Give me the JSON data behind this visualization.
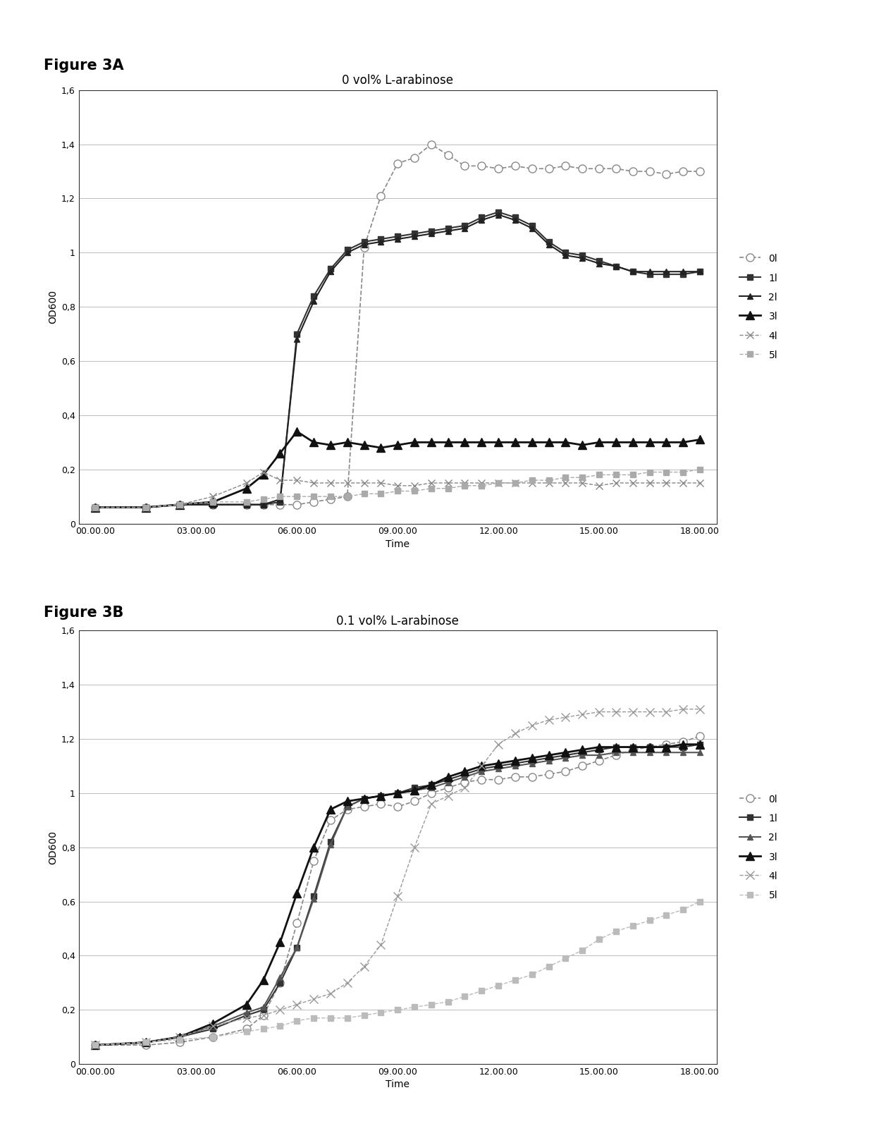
{
  "fig_label_A": "Figure 3A",
  "fig_label_B": "Figure 3B",
  "title_A": "0 vol% L-arabinose",
  "title_B": "0.1 vol% L-arabinose",
  "xlabel": "Time",
  "ylabel": "OD600",
  "ylim": [
    0,
    1.6
  ],
  "yticks": [
    0,
    0.2,
    0.4,
    0.6,
    0.8,
    1.0,
    1.2,
    1.4,
    1.6
  ],
  "ytick_labels": [
    "0",
    "0,2",
    "0,4",
    "0,6",
    "0,8",
    "1",
    "1,2",
    "1,4",
    "1,6"
  ],
  "xtick_labels": [
    "00.00.00",
    "03.00.00",
    "06.00.00",
    "09.00.00",
    "12.00.00",
    "15.00.00",
    "18.00.00"
  ],
  "xtick_positions": [
    0,
    3,
    6,
    9,
    12,
    15,
    18
  ],
  "legend_labels": [
    "0l",
    "1l",
    "2l",
    "3l",
    "4l",
    "5l"
  ],
  "A_series": {
    "0l": {
      "x": [
        0,
        1.5,
        2.5,
        3.5,
        4.5,
        5.0,
        5.5,
        6.0,
        6.5,
        7.0,
        7.5,
        8.0,
        8.5,
        9.0,
        9.5,
        10.0,
        10.5,
        11.0,
        11.5,
        12.0,
        12.5,
        13.0,
        13.5,
        14.0,
        14.5,
        15.0,
        15.5,
        16.0,
        16.5,
        17.0,
        17.5,
        18.0
      ],
      "y": [
        0.06,
        0.06,
        0.07,
        0.07,
        0.07,
        0.07,
        0.07,
        0.07,
        0.08,
        0.09,
        0.1,
        1.02,
        1.21,
        1.33,
        1.35,
        1.4,
        1.36,
        1.32,
        1.32,
        1.31,
        1.32,
        1.31,
        1.31,
        1.32,
        1.31,
        1.31,
        1.31,
        1.3,
        1.3,
        1.29,
        1.3,
        1.3
      ],
      "color": "#888888",
      "marker": "o",
      "markersize": 8,
      "markerfacecolor": "white",
      "markeredgecolor": "#888888",
      "linewidth": 1.2,
      "linestyle": "--"
    },
    "1l": {
      "x": [
        0,
        1.5,
        2.5,
        3.5,
        4.5,
        5.0,
        5.5,
        6.0,
        6.5,
        7.0,
        7.5,
        8.0,
        8.5,
        9.0,
        9.5,
        10.0,
        10.5,
        11.0,
        11.5,
        12.0,
        12.5,
        13.0,
        13.5,
        14.0,
        14.5,
        15.0,
        15.5,
        16.0,
        16.5,
        17.0,
        17.5,
        18.0
      ],
      "y": [
        0.06,
        0.06,
        0.07,
        0.07,
        0.07,
        0.07,
        0.08,
        0.7,
        0.84,
        0.94,
        1.01,
        1.04,
        1.05,
        1.06,
        1.07,
        1.08,
        1.09,
        1.1,
        1.13,
        1.15,
        1.13,
        1.1,
        1.04,
        1.0,
        0.99,
        0.97,
        0.95,
        0.93,
        0.92,
        0.92,
        0.92,
        0.93
      ],
      "color": "#333333",
      "marker": "s",
      "markersize": 6,
      "markerfacecolor": "#333333",
      "markeredgecolor": "#333333",
      "linewidth": 1.5,
      "linestyle": "-"
    },
    "2l": {
      "x": [
        0,
        1.5,
        2.5,
        3.5,
        4.5,
        5.0,
        5.5,
        6.0,
        6.5,
        7.0,
        7.5,
        8.0,
        8.5,
        9.0,
        9.5,
        10.0,
        10.5,
        11.0,
        11.5,
        12.0,
        12.5,
        13.0,
        13.5,
        14.0,
        14.5,
        15.0,
        15.5,
        16.0,
        16.5,
        17.0,
        17.5,
        18.0
      ],
      "y": [
        0.06,
        0.06,
        0.07,
        0.07,
        0.07,
        0.07,
        0.09,
        0.68,
        0.82,
        0.93,
        1.0,
        1.03,
        1.04,
        1.05,
        1.06,
        1.07,
        1.08,
        1.09,
        1.12,
        1.14,
        1.12,
        1.09,
        1.03,
        0.99,
        0.98,
        0.96,
        0.95,
        0.93,
        0.93,
        0.93,
        0.93,
        0.93
      ],
      "color": "#222222",
      "marker": "^",
      "markersize": 6,
      "markerfacecolor": "#222222",
      "markeredgecolor": "#222222",
      "linewidth": 1.5,
      "linestyle": "-"
    },
    "3l": {
      "x": [
        0,
        1.5,
        2.5,
        3.5,
        4.5,
        5.0,
        5.5,
        6.0,
        6.5,
        7.0,
        7.5,
        8.0,
        8.5,
        9.0,
        9.5,
        10.0,
        10.5,
        11.0,
        11.5,
        12.0,
        12.5,
        13.0,
        13.5,
        14.0,
        14.5,
        15.0,
        15.5,
        16.0,
        16.5,
        17.0,
        17.5,
        18.0
      ],
      "y": [
        0.06,
        0.06,
        0.07,
        0.08,
        0.13,
        0.18,
        0.26,
        0.34,
        0.3,
        0.29,
        0.3,
        0.29,
        0.28,
        0.29,
        0.3,
        0.3,
        0.3,
        0.3,
        0.3,
        0.3,
        0.3,
        0.3,
        0.3,
        0.3,
        0.29,
        0.3,
        0.3,
        0.3,
        0.3,
        0.3,
        0.3,
        0.31
      ],
      "color": "#111111",
      "marker": "^",
      "markersize": 8,
      "markerfacecolor": "#111111",
      "markeredgecolor": "#111111",
      "linewidth": 2.0,
      "linestyle": "-"
    },
    "4l": {
      "x": [
        0,
        1.5,
        2.5,
        3.5,
        4.5,
        5.0,
        5.5,
        6.0,
        6.5,
        7.0,
        7.5,
        8.0,
        8.5,
        9.0,
        9.5,
        10.0,
        10.5,
        11.0,
        11.5,
        12.0,
        12.5,
        13.0,
        13.5,
        14.0,
        14.5,
        15.0,
        15.5,
        16.0,
        16.5,
        17.0,
        17.5,
        18.0
      ],
      "y": [
        0.06,
        0.06,
        0.07,
        0.1,
        0.15,
        0.19,
        0.16,
        0.16,
        0.15,
        0.15,
        0.15,
        0.15,
        0.15,
        0.14,
        0.14,
        0.15,
        0.15,
        0.15,
        0.15,
        0.15,
        0.15,
        0.15,
        0.15,
        0.15,
        0.15,
        0.14,
        0.15,
        0.15,
        0.15,
        0.15,
        0.15,
        0.15
      ],
      "color": "#888888",
      "marker": "x",
      "markersize": 7,
      "markerfacecolor": "#888888",
      "markeredgecolor": "#888888",
      "linewidth": 1.0,
      "linestyle": "--"
    },
    "5l": {
      "x": [
        0,
        1.5,
        2.5,
        3.5,
        4.5,
        5.0,
        5.5,
        6.0,
        6.5,
        7.0,
        7.5,
        8.0,
        8.5,
        9.0,
        9.5,
        10.0,
        10.5,
        11.0,
        11.5,
        12.0,
        12.5,
        13.0,
        13.5,
        14.0,
        14.5,
        15.0,
        15.5,
        16.0,
        16.5,
        17.0,
        17.5,
        18.0
      ],
      "y": [
        0.06,
        0.06,
        0.07,
        0.08,
        0.08,
        0.09,
        0.1,
        0.1,
        0.1,
        0.1,
        0.1,
        0.11,
        0.11,
        0.12,
        0.12,
        0.13,
        0.13,
        0.14,
        0.14,
        0.15,
        0.15,
        0.16,
        0.16,
        0.17,
        0.17,
        0.18,
        0.18,
        0.18,
        0.19,
        0.19,
        0.19,
        0.2
      ],
      "color": "#aaaaaa",
      "marker": "s",
      "markersize": 6,
      "markerfacecolor": "#aaaaaa",
      "markeredgecolor": "#aaaaaa",
      "linewidth": 1.0,
      "linestyle": "--"
    }
  },
  "B_series": {
    "0l": {
      "x": [
        0,
        1.5,
        2.5,
        3.5,
        4.5,
        5.0,
        5.5,
        6.0,
        6.5,
        7.0,
        7.5,
        8.0,
        8.5,
        9.0,
        9.5,
        10.0,
        10.5,
        11.0,
        11.5,
        12.0,
        12.5,
        13.0,
        13.5,
        14.0,
        14.5,
        15.0,
        15.5,
        16.0,
        16.5,
        17.0,
        17.5,
        18.0
      ],
      "y": [
        0.07,
        0.07,
        0.08,
        0.1,
        0.13,
        0.18,
        0.3,
        0.52,
        0.75,
        0.9,
        0.94,
        0.95,
        0.96,
        0.95,
        0.97,
        1.0,
        1.02,
        1.04,
        1.05,
        1.05,
        1.06,
        1.06,
        1.07,
        1.08,
        1.1,
        1.12,
        1.14,
        1.16,
        1.17,
        1.18,
        1.19,
        1.21
      ],
      "color": "#888888",
      "marker": "o",
      "markersize": 8,
      "markerfacecolor": "white",
      "markeredgecolor": "#888888",
      "linewidth": 1.2,
      "linestyle": "--"
    },
    "1l": {
      "x": [
        0,
        1.5,
        2.5,
        3.5,
        4.5,
        5.0,
        5.5,
        6.0,
        6.5,
        7.0,
        7.5,
        8.0,
        8.5,
        9.0,
        9.5,
        10.0,
        10.5,
        11.0,
        11.5,
        12.0,
        12.5,
        13.0,
        13.5,
        14.0,
        14.5,
        15.0,
        15.5,
        16.0,
        16.5,
        17.0,
        17.5,
        18.0
      ],
      "y": [
        0.07,
        0.08,
        0.1,
        0.13,
        0.18,
        0.2,
        0.3,
        0.43,
        0.62,
        0.82,
        0.95,
        0.98,
        0.99,
        1.0,
        1.02,
        1.03,
        1.05,
        1.07,
        1.09,
        1.1,
        1.11,
        1.12,
        1.13,
        1.14,
        1.15,
        1.16,
        1.17,
        1.17,
        1.17,
        1.17,
        1.17,
        1.18
      ],
      "color": "#333333",
      "marker": "s",
      "markersize": 6,
      "markerfacecolor": "#333333",
      "markeredgecolor": "#333333",
      "linewidth": 1.5,
      "linestyle": "-"
    },
    "2l": {
      "x": [
        0,
        1.5,
        2.5,
        3.5,
        4.5,
        5.0,
        5.5,
        6.0,
        6.5,
        7.0,
        7.5,
        8.0,
        8.5,
        9.0,
        9.5,
        10.0,
        10.5,
        11.0,
        11.5,
        12.0,
        12.5,
        13.0,
        13.5,
        14.0,
        14.5,
        15.0,
        15.5,
        16.0,
        16.5,
        17.0,
        17.5,
        18.0
      ],
      "y": [
        0.07,
        0.08,
        0.1,
        0.14,
        0.19,
        0.21,
        0.32,
        0.43,
        0.61,
        0.81,
        0.95,
        0.98,
        0.99,
        1.0,
        1.01,
        1.02,
        1.04,
        1.06,
        1.08,
        1.09,
        1.1,
        1.11,
        1.12,
        1.13,
        1.14,
        1.14,
        1.15,
        1.15,
        1.15,
        1.15,
        1.15,
        1.15
      ],
      "color": "#555555",
      "marker": "^",
      "markersize": 6,
      "markerfacecolor": "#555555",
      "markeredgecolor": "#555555",
      "linewidth": 1.5,
      "linestyle": "-"
    },
    "3l": {
      "x": [
        0,
        1.5,
        2.5,
        3.5,
        4.5,
        5.0,
        5.5,
        6.0,
        6.5,
        7.0,
        7.5,
        8.0,
        8.5,
        9.0,
        9.5,
        10.0,
        10.5,
        11.0,
        11.5,
        12.0,
        12.5,
        13.0,
        13.5,
        14.0,
        14.5,
        15.0,
        15.5,
        16.0,
        16.5,
        17.0,
        17.5,
        18.0
      ],
      "y": [
        0.07,
        0.08,
        0.1,
        0.15,
        0.22,
        0.31,
        0.45,
        0.63,
        0.8,
        0.94,
        0.97,
        0.98,
        0.99,
        1.0,
        1.01,
        1.03,
        1.06,
        1.08,
        1.1,
        1.11,
        1.12,
        1.13,
        1.14,
        1.15,
        1.16,
        1.17,
        1.17,
        1.17,
        1.17,
        1.17,
        1.18,
        1.18
      ],
      "color": "#111111",
      "marker": "^",
      "markersize": 8,
      "markerfacecolor": "#111111",
      "markeredgecolor": "#111111",
      "linewidth": 2.0,
      "linestyle": "-"
    },
    "4l": {
      "x": [
        0,
        1.5,
        2.5,
        3.5,
        4.5,
        5.0,
        5.5,
        6.0,
        6.5,
        7.0,
        7.5,
        8.0,
        8.5,
        9.0,
        9.5,
        10.0,
        10.5,
        11.0,
        11.5,
        12.0,
        12.5,
        13.0,
        13.5,
        14.0,
        14.5,
        15.0,
        15.5,
        16.0,
        16.5,
        17.0,
        17.5,
        18.0
      ],
      "y": [
        0.07,
        0.08,
        0.1,
        0.14,
        0.17,
        0.18,
        0.2,
        0.22,
        0.24,
        0.26,
        0.3,
        0.36,
        0.44,
        0.62,
        0.8,
        0.96,
        0.99,
        1.02,
        1.1,
        1.18,
        1.22,
        1.25,
        1.27,
        1.28,
        1.29,
        1.3,
        1.3,
        1.3,
        1.3,
        1.3,
        1.31,
        1.31
      ],
      "color": "#999999",
      "marker": "x",
      "markersize": 9,
      "markerfacecolor": "#999999",
      "markeredgecolor": "#999999",
      "linewidth": 1.0,
      "linestyle": "--"
    },
    "5l": {
      "x": [
        0,
        1.5,
        2.5,
        3.5,
        4.5,
        5.0,
        5.5,
        6.0,
        6.5,
        7.0,
        7.5,
        8.0,
        8.5,
        9.0,
        9.5,
        10.0,
        10.5,
        11.0,
        11.5,
        12.0,
        12.5,
        13.0,
        13.5,
        14.0,
        14.5,
        15.0,
        15.5,
        16.0,
        16.5,
        17.0,
        17.5,
        18.0
      ],
      "y": [
        0.07,
        0.08,
        0.09,
        0.1,
        0.12,
        0.13,
        0.14,
        0.16,
        0.17,
        0.17,
        0.17,
        0.18,
        0.19,
        0.2,
        0.21,
        0.22,
        0.23,
        0.25,
        0.27,
        0.29,
        0.31,
        0.33,
        0.36,
        0.39,
        0.42,
        0.46,
        0.49,
        0.51,
        0.53,
        0.55,
        0.57,
        0.6
      ],
      "color": "#bbbbbb",
      "marker": "s",
      "markersize": 6,
      "markerfacecolor": "#bbbbbb",
      "markeredgecolor": "#bbbbbb",
      "linewidth": 1.0,
      "linestyle": "--"
    }
  },
  "background_color": "#ffffff",
  "plot_bg_color": "#ffffff",
  "grid_color": "#bbbbbb",
  "title_fontsize": 12,
  "label_fontsize": 10,
  "tick_fontsize": 9,
  "legend_fontsize": 10,
  "fig_label_fontsize": 15,
  "fig_label_fontweight": "bold"
}
